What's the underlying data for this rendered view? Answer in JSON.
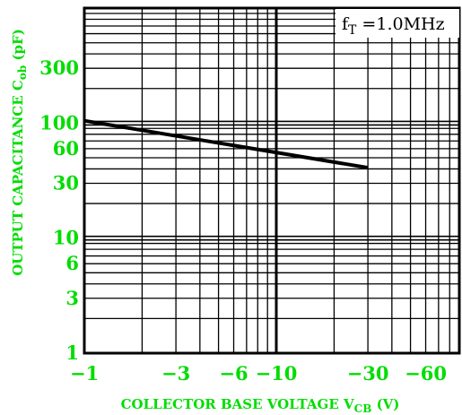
{
  "chart_data": {
    "type": "line",
    "xscale": "log",
    "yscale": "log",
    "x_direction": "negative",
    "xlim": [
      -1,
      -100
    ],
    "ylim": [
      1,
      1000
    ],
    "grid": true,
    "x_ticks": [
      {
        "value": -1,
        "label": "−1"
      },
      {
        "value": -3,
        "label": "−3"
      },
      {
        "value": -6,
        "label": "−6"
      },
      {
        "value": -10,
        "label": "−10"
      },
      {
        "value": -30,
        "label": "−30"
      },
      {
        "value": -60,
        "label": "−60"
      }
    ],
    "y_ticks": [
      {
        "value": 1,
        "label": "1"
      },
      {
        "value": 3,
        "label": "3"
      },
      {
        "value": 6,
        "label": "6"
      },
      {
        "value": 10,
        "label": "10"
      },
      {
        "value": 30,
        "label": "30"
      },
      {
        "value": 60,
        "label": "60"
      },
      {
        "value": 100,
        "label": "100"
      },
      {
        "value": 300,
        "label": "300"
      }
    ],
    "xlabel": {
      "main": "COLLECTOR BASE VOLTAGE V",
      "sub": "CB",
      "tail": " (V)"
    },
    "ylabel": {
      "main": "OUTPUT CAPACITANCE C",
      "sub": "ob",
      "tail": " (pF)"
    },
    "annotation": {
      "main": "f",
      "sub": "T",
      "tail": " =1.0MHz"
    },
    "series": [
      {
        "x": [
          -1,
          -30
        ],
        "y": [
          105,
          41
        ],
        "color": "#000000"
      }
    ],
    "colors": {
      "label": "#00dd00",
      "grid": "#000000",
      "line": "#000000"
    }
  }
}
